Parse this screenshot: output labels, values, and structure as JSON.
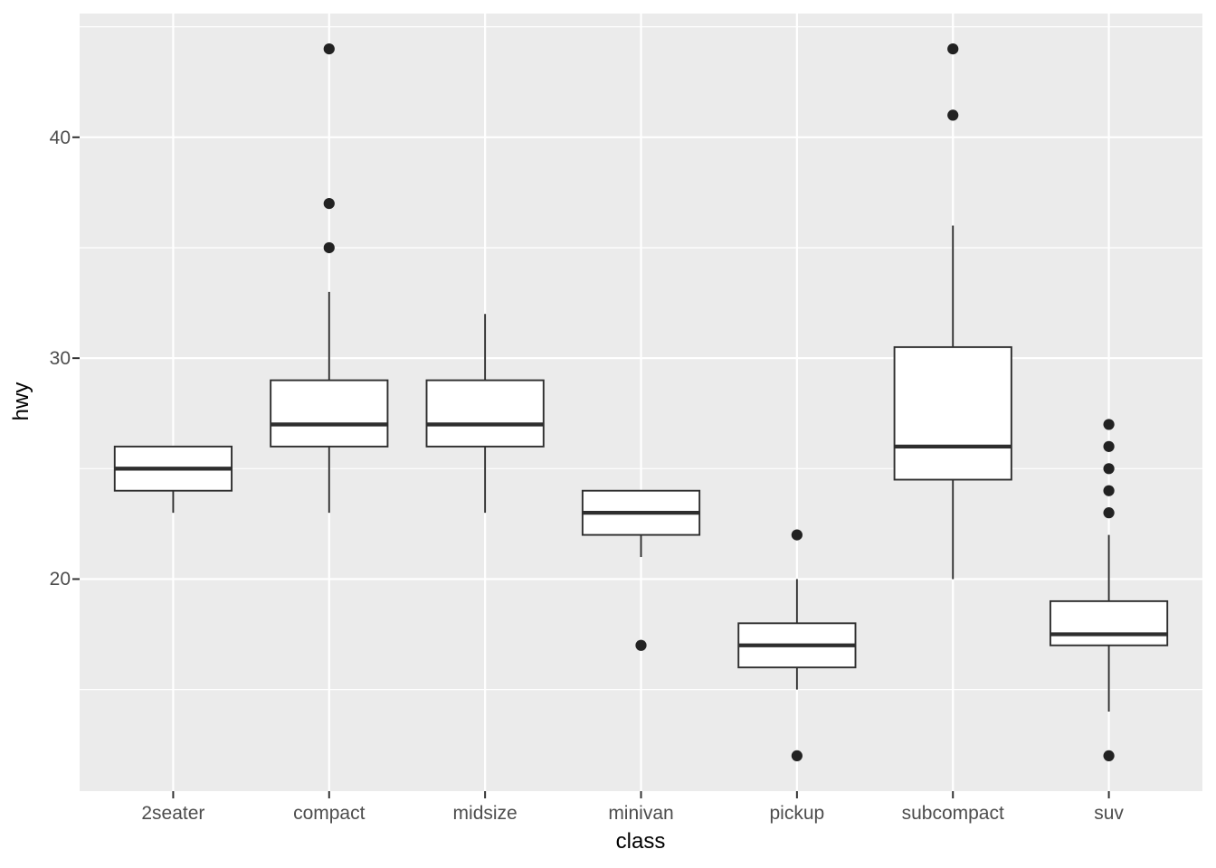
{
  "figure": {
    "background": "#FFFFFF",
    "panel_background": "#EBEBEB",
    "grid_color": "#FFFFFF",
    "box_stroke": "#2E2E2E",
    "box_fill": "#FFFFFF",
    "outlier_color": "#222222",
    "tick_mark_color": "#333333",
    "axis_text_color": "#4D4D4D",
    "axis_title_color": "#000000"
  },
  "chart_data": {
    "type": "boxplot",
    "title": "",
    "xlabel": "class",
    "ylabel": "hwy",
    "categories": [
      "2seater",
      "compact",
      "midsize",
      "minivan",
      "pickup",
      "subcompact",
      "suv"
    ],
    "ylim": [
      10.4,
      45.6
    ],
    "y_major_ticks": [
      20,
      30,
      40
    ],
    "y_minor_ticks": [
      15,
      25,
      35,
      45
    ],
    "grid": true,
    "legend": false,
    "series": [
      {
        "category": "2seater",
        "whisker_low": 23,
        "q1": 24,
        "median": 25,
        "q3": 26,
        "whisker_high": 26,
        "outliers": []
      },
      {
        "category": "compact",
        "whisker_low": 23,
        "q1": 26,
        "median": 27,
        "q3": 29,
        "whisker_high": 33,
        "outliers": [
          44,
          37,
          35
        ]
      },
      {
        "category": "midsize",
        "whisker_low": 23,
        "q1": 26,
        "median": 27,
        "q3": 29,
        "whisker_high": 32,
        "outliers": []
      },
      {
        "category": "minivan",
        "whisker_low": 21,
        "q1": 22,
        "median": 23,
        "q3": 24,
        "whisker_high": 24,
        "outliers": [
          17
        ]
      },
      {
        "category": "pickup",
        "whisker_low": 15,
        "q1": 16,
        "median": 17,
        "q3": 18,
        "whisker_high": 20,
        "outliers": [
          22,
          12
        ]
      },
      {
        "category": "subcompact",
        "whisker_low": 20,
        "q1": 24.5,
        "median": 26,
        "q3": 30.5,
        "whisker_high": 36,
        "outliers": [
          44,
          41
        ]
      },
      {
        "category": "suv",
        "whisker_low": 14,
        "q1": 17,
        "median": 17.5,
        "q3": 19,
        "whisker_high": 22,
        "outliers": [
          27,
          26,
          25,
          24,
          23,
          12
        ]
      }
    ]
  }
}
